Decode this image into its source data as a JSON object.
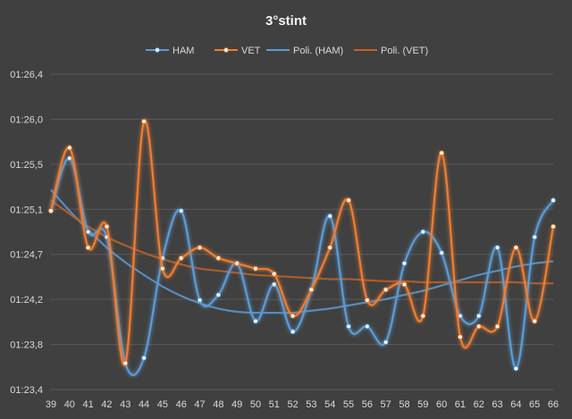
{
  "chart_data": {
    "type": "line",
    "title": "3°stint",
    "x": [
      39,
      40,
      41,
      42,
      43,
      44,
      45,
      46,
      47,
      48,
      49,
      50,
      51,
      52,
      53,
      54,
      55,
      56,
      57,
      58,
      59,
      60,
      61,
      62,
      63,
      64,
      65,
      66
    ],
    "x_tick_labels": [
      "39",
      "40",
      "41",
      "42",
      "43",
      "44",
      "45",
      "46",
      "47",
      "48",
      "49",
      "50",
      "51",
      "52",
      "53",
      "54",
      "55",
      "56",
      "57",
      "58",
      "59",
      "60",
      "61",
      "62",
      "63",
      "64",
      "65",
      "66"
    ],
    "y_tick_labels": [
      "01:23,4",
      "01:23,8",
      "01:24,2",
      "01:24,7",
      "01:25,1",
      "01:25,5",
      "01:26,0",
      "01:26,4"
    ],
    "ylim_seconds": [
      83.4,
      86.4
    ],
    "y_unit": "mm:ss,d",
    "grid": true,
    "legend_position": "top",
    "series": [
      {
        "name": "HAM",
        "color": "#5b9bd5",
        "marker": true,
        "smooth": true,
        "values": [
          85.1,
          85.6,
          84.9,
          84.85,
          83.65,
          83.7,
          84.65,
          85.1,
          84.25,
          84.3,
          84.6,
          84.05,
          84.4,
          83.95,
          84.35,
          85.05,
          84.0,
          84.0,
          83.85,
          84.6,
          84.9,
          84.7,
          84.1,
          84.1,
          84.75,
          83.6,
          84.85,
          85.2
        ]
      },
      {
        "name": "VET",
        "color": "#ed7d31",
        "marker": true,
        "smooth": true,
        "values": [
          85.1,
          85.7,
          84.75,
          84.95,
          83.65,
          85.95,
          84.55,
          84.65,
          84.75,
          84.65,
          84.6,
          84.55,
          84.5,
          84.1,
          84.35,
          84.75,
          85.2,
          84.25,
          84.35,
          84.4,
          84.1,
          85.65,
          83.9,
          84.0,
          84.0,
          84.75,
          84.05,
          84.95
        ]
      },
      {
        "name": "Poli. (HAM)",
        "color": "#5b9bd5",
        "marker": false,
        "smooth": true,
        "trendline_of": "HAM",
        "values": [
          85.3,
          85.1,
          84.92,
          84.75,
          84.61,
          84.49,
          84.38,
          84.29,
          84.22,
          84.17,
          84.14,
          84.13,
          84.13,
          84.13,
          84.15,
          84.17,
          84.2,
          84.23,
          84.26,
          84.3,
          84.34,
          84.39,
          84.44,
          84.49,
          84.53,
          84.57,
          84.6,
          84.62
        ]
      },
      {
        "name": "Poli. (VET)",
        "color": "#c0622a",
        "marker": false,
        "smooth": true,
        "trendline_of": "VET",
        "values": [
          85.2,
          85.07,
          84.95,
          84.85,
          84.77,
          84.7,
          84.64,
          84.59,
          84.55,
          84.53,
          84.51,
          84.49,
          84.48,
          84.47,
          84.46,
          84.45,
          84.45,
          84.44,
          84.43,
          84.43,
          84.42,
          84.42,
          84.42,
          84.42,
          84.42,
          84.42,
          84.41,
          84.41
        ]
      }
    ]
  }
}
